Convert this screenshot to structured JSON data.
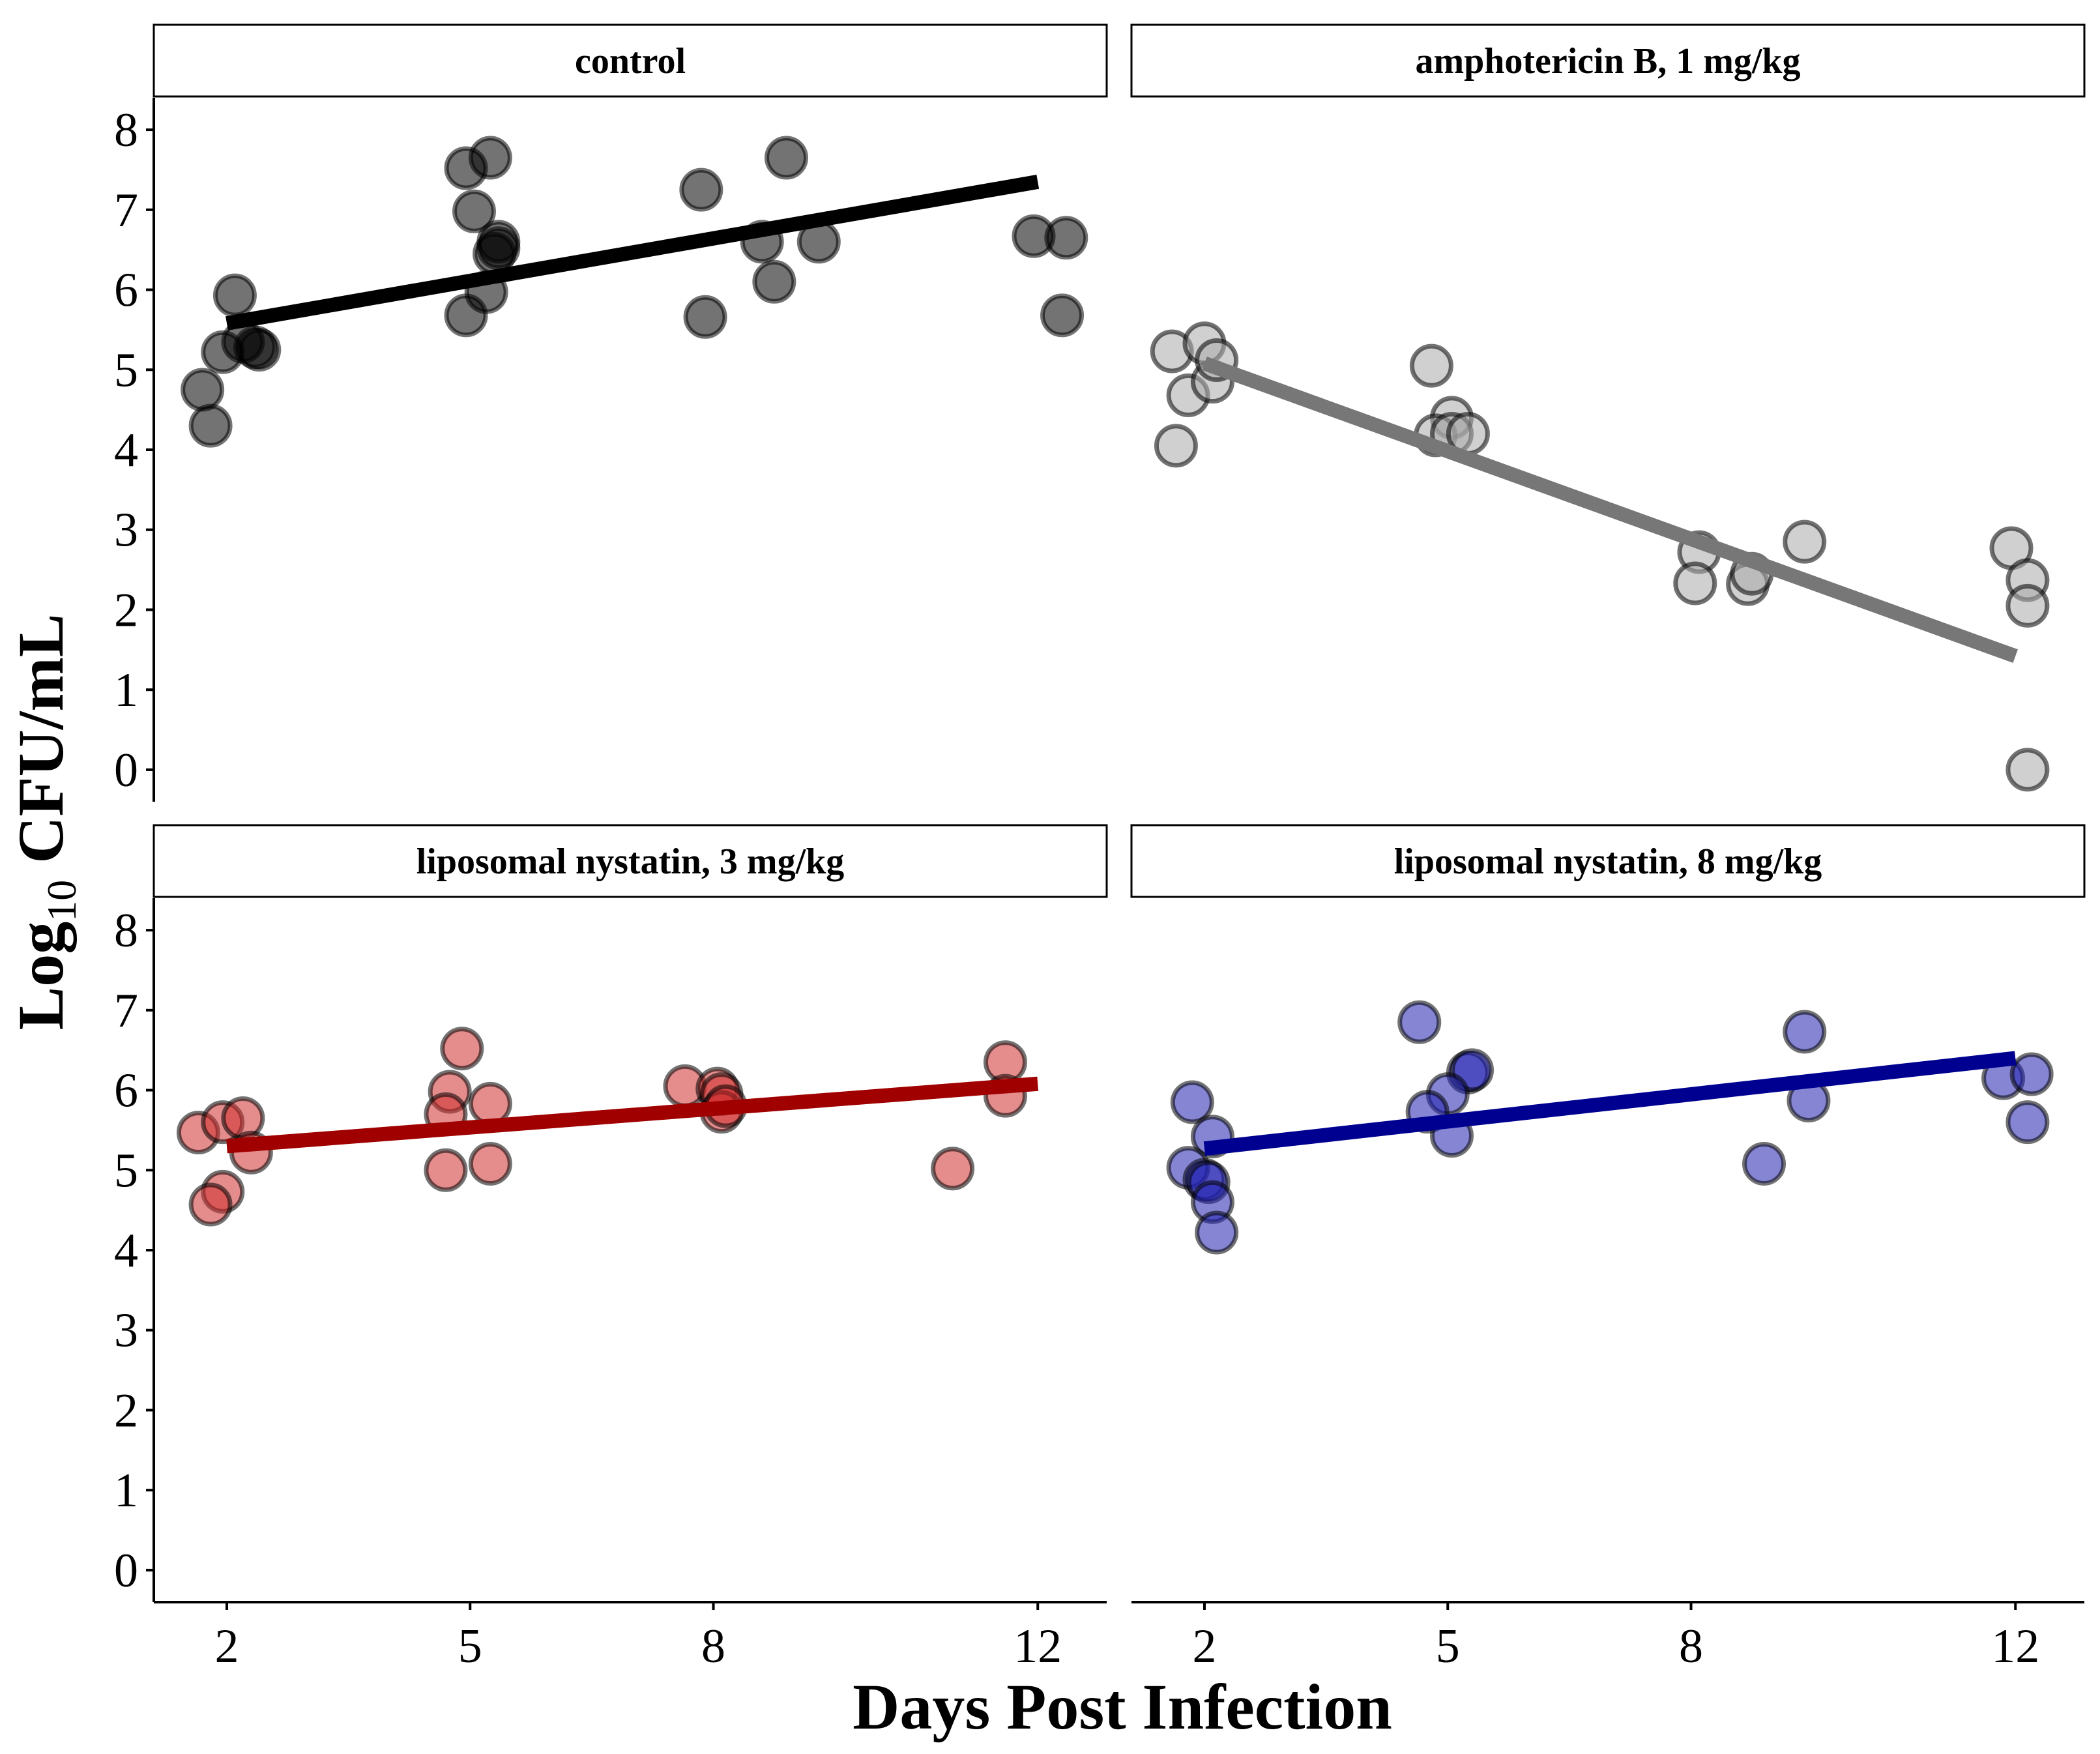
{
  "chart_data": {
    "type": "scatter",
    "layout": "facet-grid 2x2",
    "xlabel": "Days Post Infection",
    "ylabel_main": "Log",
    "ylabel_subscript": "10",
    "ylabel_rest": " CFU/mL",
    "x_ticks": [
      2,
      5,
      8,
      12
    ],
    "x_tick_labels": [
      "2",
      "5",
      "8",
      "12"
    ],
    "y_ticks": [
      0,
      1,
      2,
      3,
      4,
      5,
      6,
      7,
      8
    ],
    "y_tick_labels": [
      "0",
      "1",
      "2",
      "3",
      "4",
      "5",
      "6",
      "7",
      "8"
    ],
    "xlim": [
      1.1,
      12.85
    ],
    "ylim": [
      -0.4,
      8.4
    ],
    "panels": [
      {
        "title": "control",
        "color": "#000000",
        "fill": "#000000",
        "fill_opacity": 0.55,
        "points": [
          {
            "x": 1.7,
            "y": 4.75
          },
          {
            "x": 1.8,
            "y": 4.3
          },
          {
            "x": 1.95,
            "y": 5.22
          },
          {
            "x": 2.1,
            "y": 5.93
          },
          {
            "x": 2.2,
            "y": 5.35
          },
          {
            "x": 2.35,
            "y": 5.28
          },
          {
            "x": 2.4,
            "y": 5.25
          },
          {
            "x": 4.95,
            "y": 7.52
          },
          {
            "x": 5.25,
            "y": 7.65
          },
          {
            "x": 5.05,
            "y": 6.98
          },
          {
            "x": 5.35,
            "y": 6.6
          },
          {
            "x": 5.3,
            "y": 6.45
          },
          {
            "x": 5.35,
            "y": 6.52
          },
          {
            "x": 5.2,
            "y": 5.97
          },
          {
            "x": 4.95,
            "y": 5.68
          },
          {
            "x": 7.85,
            "y": 7.25
          },
          {
            "x": 8.9,
            "y": 7.65
          },
          {
            "x": 8.6,
            "y": 6.6
          },
          {
            "x": 9.3,
            "y": 6.6
          },
          {
            "x": 8.75,
            "y": 6.1
          },
          {
            "x": 7.9,
            "y": 5.66
          },
          {
            "x": 11.95,
            "y": 6.67
          },
          {
            "x": 12.35,
            "y": 6.65
          },
          {
            "x": 12.3,
            "y": 5.68
          }
        ],
        "fit": {
          "x0": 2,
          "y0": 5.58,
          "x1": 12,
          "y1": 7.35
        }
      },
      {
        "title": "amphotericin B, 1 mg/kg",
        "color": "#777777",
        "fill": "#aaaaaa",
        "fill_opacity": 0.55,
        "points": [
          {
            "x": 1.6,
            "y": 5.23
          },
          {
            "x": 2.0,
            "y": 5.33
          },
          {
            "x": 1.8,
            "y": 4.68
          },
          {
            "x": 2.1,
            "y": 4.85
          },
          {
            "x": 2.15,
            "y": 5.12
          },
          {
            "x": 1.65,
            "y": 4.05
          },
          {
            "x": 4.8,
            "y": 5.05
          },
          {
            "x": 5.05,
            "y": 4.4
          },
          {
            "x": 4.85,
            "y": 4.18
          },
          {
            "x": 5.05,
            "y": 4.2
          },
          {
            "x": 5.25,
            "y": 4.2
          },
          {
            "x": 8.1,
            "y": 2.72
          },
          {
            "x": 8.05,
            "y": 2.33
          },
          {
            "x": 8.7,
            "y": 2.32
          },
          {
            "x": 8.75,
            "y": 2.45
          },
          {
            "x": 9.4,
            "y": 2.85
          },
          {
            "x": 11.95,
            "y": 2.77
          },
          {
            "x": 12.15,
            "y": 2.37
          },
          {
            "x": 12.15,
            "y": 2.05
          },
          {
            "x": 12.15,
            "y": 0.0
          }
        ],
        "fit": {
          "x0": 2,
          "y0": 5.08,
          "x1": 12,
          "y1": 1.42
        }
      },
      {
        "title": "liposomal nystatin, 3 mg/kg",
        "color": "#a00000",
        "fill": "#d03030",
        "fill_opacity": 0.55,
        "points": [
          {
            "x": 1.65,
            "y": 5.47
          },
          {
            "x": 1.95,
            "y": 5.6
          },
          {
            "x": 2.2,
            "y": 5.65
          },
          {
            "x": 2.3,
            "y": 5.22
          },
          {
            "x": 1.95,
            "y": 4.73
          },
          {
            "x": 1.8,
            "y": 4.57
          },
          {
            "x": 4.9,
            "y": 6.52
          },
          {
            "x": 4.75,
            "y": 5.98
          },
          {
            "x": 4.7,
            "y": 5.7
          },
          {
            "x": 5.25,
            "y": 5.83
          },
          {
            "x": 5.25,
            "y": 5.08
          },
          {
            "x": 4.7,
            "y": 5.0
          },
          {
            "x": 7.65,
            "y": 6.05
          },
          {
            "x": 8.05,
            "y": 6.02
          },
          {
            "x": 8.1,
            "y": 5.95
          },
          {
            "x": 8.1,
            "y": 5.73
          },
          {
            "x": 8.15,
            "y": 5.8
          },
          {
            "x": 11.6,
            "y": 6.35
          },
          {
            "x": 11.6,
            "y": 5.93
          },
          {
            "x": 10.95,
            "y": 5.02
          }
        ],
        "fit": {
          "x0": 2,
          "y0": 5.3,
          "x1": 12,
          "y1": 6.08
        }
      },
      {
        "title": "liposomal nystatin, 8 mg/kg",
        "color": "#000090",
        "fill": "#2020b0",
        "fill_opacity": 0.55,
        "points": [
          {
            "x": 1.85,
            "y": 5.85
          },
          {
            "x": 2.1,
            "y": 5.42
          },
          {
            "x": 1.8,
            "y": 5.03
          },
          {
            "x": 2.0,
            "y": 4.88
          },
          {
            "x": 2.05,
            "y": 4.85
          },
          {
            "x": 2.1,
            "y": 4.6
          },
          {
            "x": 2.15,
            "y": 4.22
          },
          {
            "x": 4.65,
            "y": 6.85
          },
          {
            "x": 5.25,
            "y": 6.22
          },
          {
            "x": 5.3,
            "y": 6.25
          },
          {
            "x": 5.0,
            "y": 5.95
          },
          {
            "x": 4.75,
            "y": 5.73
          },
          {
            "x": 5.05,
            "y": 5.43
          },
          {
            "x": 8.9,
            "y": 5.08
          },
          {
            "x": 9.4,
            "y": 6.73
          },
          {
            "x": 9.45,
            "y": 5.87
          },
          {
            "x": 11.85,
            "y": 6.15
          },
          {
            "x": 12.2,
            "y": 6.2
          },
          {
            "x": 12.15,
            "y": 5.6
          }
        ],
        "fit": {
          "x0": 2,
          "y0": 5.27,
          "x1": 12,
          "y1": 6.4
        }
      }
    ]
  }
}
